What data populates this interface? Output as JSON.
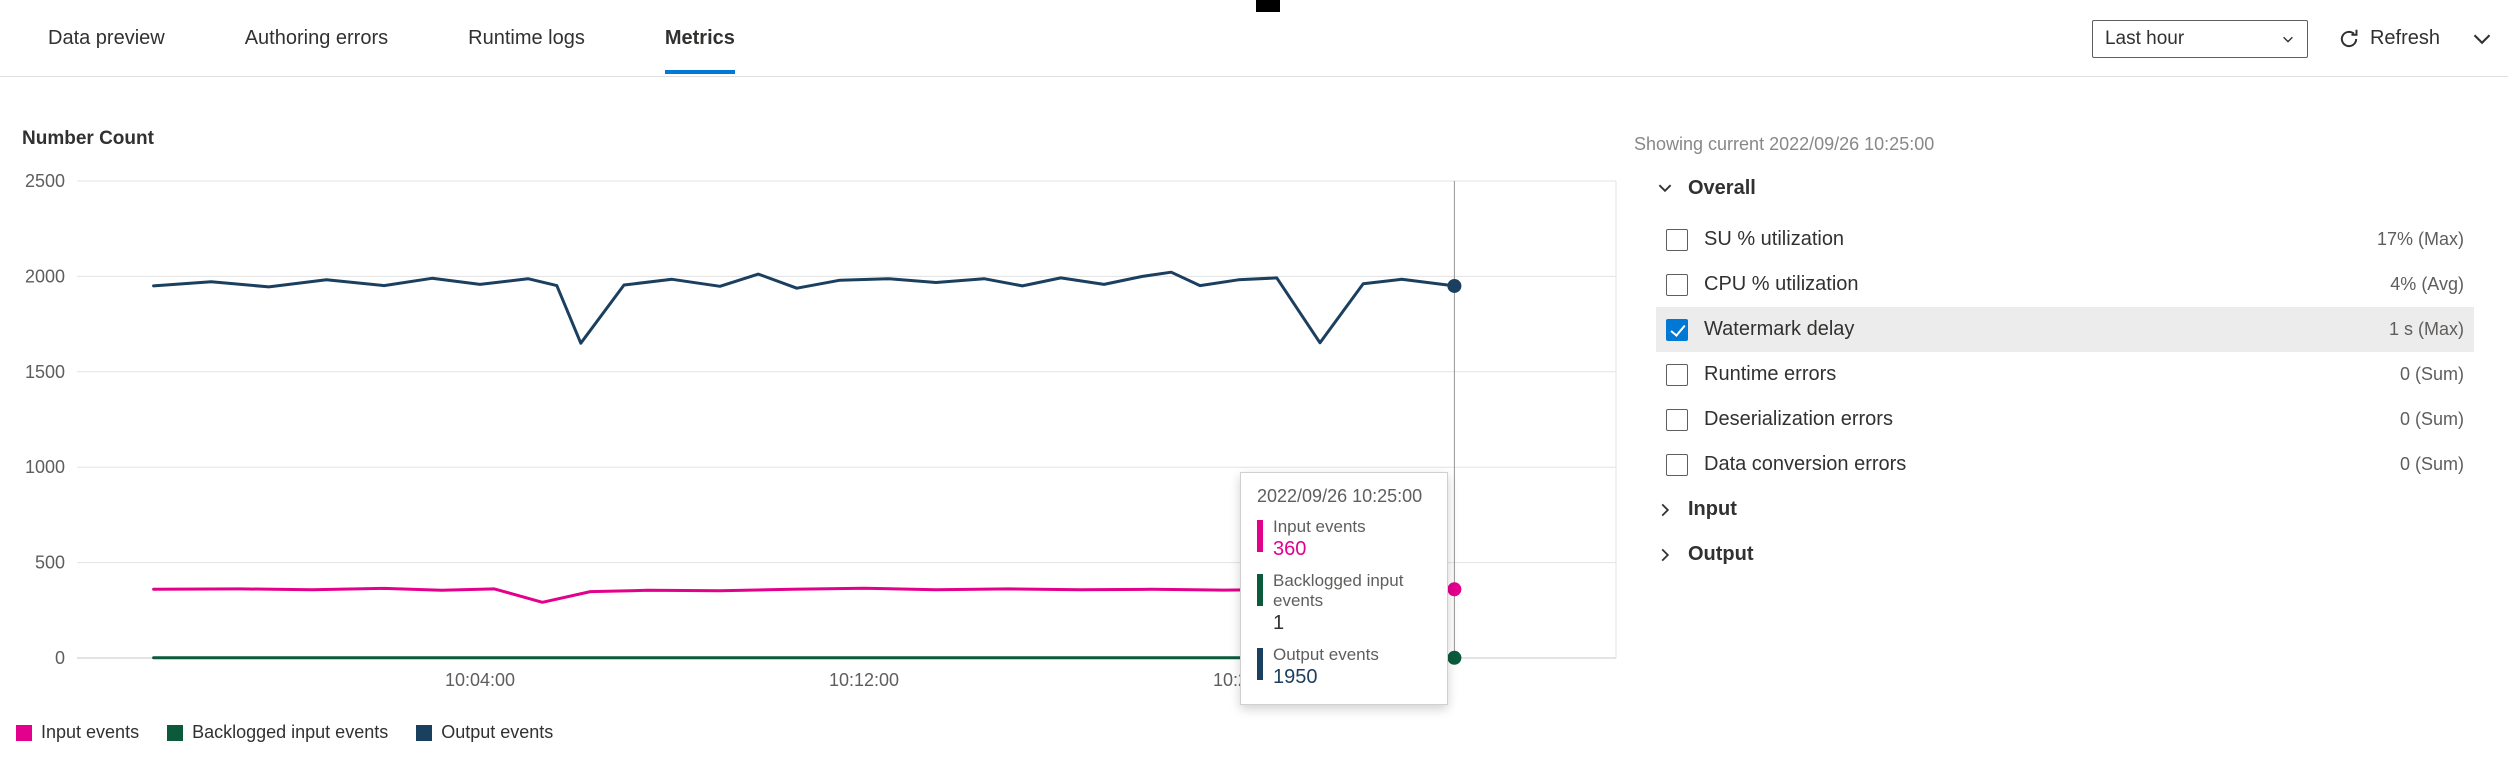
{
  "topbar": {
    "tabs": [
      {
        "label": "Data preview",
        "active": false
      },
      {
        "label": "Authoring errors",
        "active": false
      },
      {
        "label": "Runtime logs",
        "active": false
      },
      {
        "label": "Metrics",
        "active": true
      }
    ],
    "time_range_value": "Last hour",
    "refresh_label": "Refresh"
  },
  "chart_data": {
    "type": "line",
    "title": "Number Count",
    "ylim": [
      0,
      2500
    ],
    "y_ticks": [
      0,
      500,
      1000,
      1500,
      2000,
      2500
    ],
    "x_ticks": [
      {
        "min": 4,
        "label": "10:04:00"
      },
      {
        "min": 12,
        "label": "10:12:00"
      },
      {
        "min": 20,
        "label": "10:20:00"
      }
    ],
    "series": [
      {
        "name": "Input events",
        "color": "#e3008c",
        "points": [
          [
            -2.8,
            360
          ],
          [
            -1.0,
            362
          ],
          [
            0.5,
            358
          ],
          [
            2.0,
            365
          ],
          [
            3.2,
            355
          ],
          [
            4.3,
            362
          ],
          [
            5.3,
            292
          ],
          [
            6.3,
            348
          ],
          [
            7.5,
            355
          ],
          [
            9.0,
            352
          ],
          [
            10.5,
            360
          ],
          [
            12.0,
            366
          ],
          [
            13.5,
            358
          ],
          [
            15.0,
            362
          ],
          [
            16.5,
            358
          ],
          [
            18.0,
            360
          ],
          [
            19.5,
            356
          ],
          [
            21.0,
            360
          ],
          [
            22.0,
            354
          ],
          [
            23.0,
            363
          ],
          [
            24.3,
            360
          ]
        ]
      },
      {
        "name": "Backlogged input events",
        "color": "#0b5a3c",
        "points": [
          [
            -2.8,
            1
          ],
          [
            24.3,
            1
          ]
        ]
      },
      {
        "name": "Output events",
        "color": "#1b3f5f",
        "points": [
          [
            -2.8,
            1950
          ],
          [
            -1.6,
            1972
          ],
          [
            -0.4,
            1945
          ],
          [
            0.8,
            1982
          ],
          [
            2.0,
            1952
          ],
          [
            3.0,
            1990
          ],
          [
            4.0,
            1958
          ],
          [
            5.0,
            1988
          ],
          [
            5.6,
            1952
          ],
          [
            6.1,
            1650
          ],
          [
            7.0,
            1955
          ],
          [
            8.0,
            1985
          ],
          [
            9.0,
            1948
          ],
          [
            9.8,
            2012
          ],
          [
            10.6,
            1938
          ],
          [
            11.5,
            1980
          ],
          [
            12.5,
            1988
          ],
          [
            13.5,
            1968
          ],
          [
            14.5,
            1988
          ],
          [
            15.3,
            1950
          ],
          [
            16.1,
            1992
          ],
          [
            17.0,
            1958
          ],
          [
            17.8,
            2000
          ],
          [
            18.4,
            2022
          ],
          [
            19.0,
            1952
          ],
          [
            19.8,
            1982
          ],
          [
            20.6,
            1992
          ],
          [
            21.5,
            1652
          ],
          [
            22.4,
            1962
          ],
          [
            23.2,
            1985
          ],
          [
            24.3,
            1950
          ]
        ]
      }
    ],
    "crosshair": {
      "min": 24.3,
      "time": "2022/09/26 10:25:00",
      "values": {
        "Input events": 360,
        "Backlogged input events": 1,
        "Output events": 1950
      }
    }
  },
  "tooltip": {
    "time": "2022/09/26 10:25:00",
    "items": [
      {
        "label": "Input events",
        "value": "360",
        "color": "#e3008c",
        "value_color": "#e3008c"
      },
      {
        "label": "Backlogged input events",
        "value": "1",
        "color": "#0b5a3c",
        "value_color": "#323130"
      },
      {
        "label": "Output events",
        "value": "1950",
        "color": "#1b3f5f",
        "value_color": "#1b3f5f"
      }
    ]
  },
  "panel": {
    "showing_current": "Showing current 2022/09/26 10:25:00",
    "groups": [
      {
        "label": "Overall",
        "expanded": true
      },
      {
        "label": "Input",
        "expanded": false
      },
      {
        "label": "Output",
        "expanded": false
      }
    ],
    "metrics": [
      {
        "label": "SU % utilization",
        "value": "17% (Max)",
        "checked": false
      },
      {
        "label": "CPU % utilization",
        "value": "4% (Avg)",
        "checked": false
      },
      {
        "label": "Watermark delay",
        "value": "1 s (Max)",
        "checked": true
      },
      {
        "label": "Runtime errors",
        "value": "0 (Sum)",
        "checked": false
      },
      {
        "label": "Deserialization errors",
        "value": "0 (Sum)",
        "checked": false
      },
      {
        "label": "Data conversion errors",
        "value": "0 (Sum)",
        "checked": false
      }
    ]
  }
}
